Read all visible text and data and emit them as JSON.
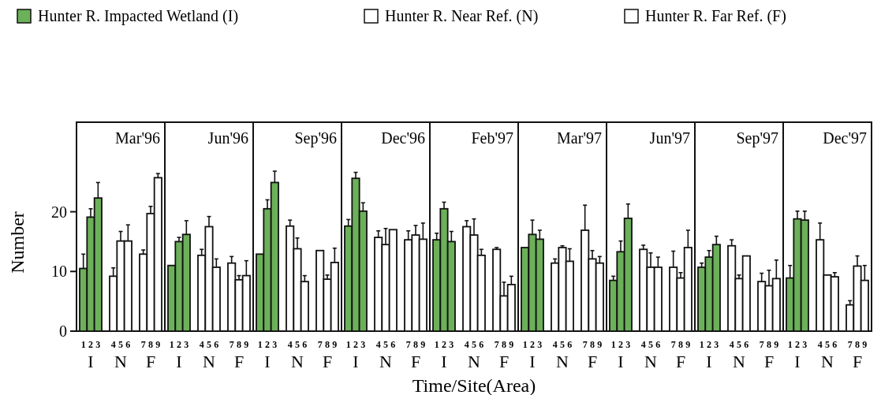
{
  "chart_data": {
    "type": "bar",
    "xlabel": "Time/Site(Area)",
    "ylabel": "Number",
    "categories": [
      "1",
      "2",
      "3",
      "4",
      "5",
      "6",
      "7",
      "8",
      "9",
      "1",
      "2",
      "3",
      "4",
      "5",
      "6",
      "7",
      "8",
      "9",
      "1",
      "2",
      "3",
      "4",
      "5",
      "6",
      "7",
      "8",
      "9",
      "1",
      "2",
      "3",
      "4",
      "5",
      "6",
      "7",
      "8",
      "9",
      "1",
      "2",
      "3",
      "4",
      "5",
      "6",
      "7",
      "8",
      "9",
      "1",
      "2",
      "3",
      "4",
      "5",
      "6",
      "7",
      "8",
      "9",
      "1",
      "2",
      "3",
      "4",
      "5",
      "6",
      "7",
      "8",
      "9",
      "1",
      "2",
      "3",
      "4",
      "5",
      "6",
      "7",
      "8",
      "9",
      "1",
      "2",
      "3",
      "4",
      "5",
      "6",
      "7",
      "8",
      "9"
    ],
    "series": [
      {
        "name": "Hunter R. Impacted Wetland (I)",
        "color": "#6cb05a",
        "values": [
          10.5,
          19.1,
          22.3,
          null,
          null,
          null,
          null,
          null,
          null,
          11.0,
          15.0,
          16.2,
          null,
          null,
          null,
          null,
          null,
          null,
          12.9,
          20.5,
          24.9,
          null,
          null,
          null,
          null,
          null,
          null,
          17.6,
          25.6,
          20.1,
          null,
          null,
          null,
          null,
          null,
          null,
          15.3,
          20.5,
          15.0,
          null,
          null,
          null,
          null,
          null,
          null,
          14.0,
          16.2,
          15.4,
          null,
          null,
          null,
          null,
          null,
          null,
          8.5,
          13.3,
          18.9,
          null,
          null,
          null,
          null,
          null,
          null,
          10.7,
          12.4,
          14.5,
          null,
          null,
          null,
          null,
          null,
          null,
          8.9,
          18.8,
          18.6,
          null,
          null,
          null,
          null,
          null,
          null
        ],
        "errors": [
          2.4,
          1.4,
          2.6,
          null,
          null,
          null,
          null,
          null,
          null,
          null,
          0.7,
          2.3,
          null,
          null,
          null,
          null,
          null,
          null,
          null,
          1.5,
          1.9,
          null,
          null,
          null,
          null,
          null,
          null,
          1.1,
          1.0,
          1.4,
          null,
          null,
          null,
          null,
          null,
          null,
          1.1,
          1.1,
          1.7,
          null,
          null,
          null,
          null,
          null,
          null,
          null,
          2.4,
          1.5,
          null,
          null,
          null,
          null,
          null,
          null,
          0.7,
          1.8,
          2.4,
          null,
          null,
          null,
          null,
          null,
          null,
          0.7,
          1.1,
          1.4,
          null,
          null,
          null,
          null,
          null,
          null,
          2.1,
          1.3,
          1.5,
          null,
          null,
          null,
          null,
          null,
          null
        ]
      },
      {
        "name": "Hunter R. Near Ref. (N)",
        "color": "#ffffff",
        "values": [
          null,
          null,
          null,
          9.2,
          15.1,
          15.1,
          null,
          null,
          null,
          null,
          null,
          null,
          12.7,
          17.5,
          10.7,
          null,
          null,
          null,
          null,
          null,
          null,
          17.6,
          13.8,
          8.3,
          null,
          null,
          null,
          null,
          null,
          null,
          15.7,
          14.5,
          17.0,
          null,
          null,
          null,
          null,
          null,
          null,
          17.5,
          16.1,
          12.7,
          null,
          null,
          null,
          null,
          null,
          null,
          11.4,
          14.0,
          11.7,
          null,
          null,
          null,
          null,
          null,
          null,
          13.7,
          10.7,
          10.7,
          null,
          null,
          null,
          null,
          null,
          null,
          14.3,
          8.8,
          12.6,
          null,
          null,
          null,
          null,
          null,
          null,
          15.3,
          9.4,
          9.1,
          null,
          null,
          null
        ],
        "errors": [
          null,
          null,
          null,
          1.4,
          1.6,
          2.7,
          null,
          null,
          null,
          null,
          null,
          null,
          1.0,
          1.7,
          1.4,
          null,
          null,
          null,
          null,
          null,
          null,
          1.0,
          1.8,
          1.0,
          null,
          null,
          null,
          null,
          null,
          null,
          1.1,
          2.7,
          null,
          null,
          null,
          null,
          null,
          null,
          null,
          1.0,
          2.7,
          1.0,
          null,
          null,
          null,
          null,
          null,
          null,
          0.7,
          0.3,
          2.1,
          null,
          null,
          null,
          null,
          null,
          null,
          0.7,
          2.4,
          1.7,
          null,
          null,
          null,
          null,
          null,
          null,
          1.0,
          0.6,
          null,
          null,
          null,
          null,
          null,
          null,
          null,
          2.8,
          null,
          0.7,
          null,
          null,
          null
        ]
      },
      {
        "name": "Hunter R. Far Ref. (F)",
        "color": "#ffffff",
        "values": [
          null,
          null,
          null,
          null,
          null,
          null,
          12.9,
          19.7,
          25.7,
          null,
          null,
          null,
          null,
          null,
          null,
          11.4,
          8.6,
          9.3,
          null,
          null,
          null,
          null,
          null,
          null,
          13.5,
          8.7,
          11.5,
          null,
          null,
          null,
          null,
          null,
          null,
          15.3,
          16.1,
          15.4,
          null,
          null,
          null,
          null,
          null,
          null,
          13.7,
          5.9,
          7.8,
          null,
          null,
          null,
          null,
          null,
          null,
          16.9,
          12.1,
          11.4,
          null,
          null,
          null,
          null,
          null,
          null,
          10.7,
          8.9,
          14.0,
          null,
          null,
          null,
          null,
          null,
          null,
          8.3,
          7.6,
          8.8,
          null,
          null,
          null,
          null,
          null,
          null,
          4.4,
          10.9,
          8.5
        ],
        "errors": [
          null,
          null,
          null,
          null,
          null,
          null,
          0.7,
          1.2,
          0.7,
          null,
          null,
          null,
          null,
          null,
          null,
          1.1,
          0.7,
          2.5,
          null,
          null,
          null,
          null,
          null,
          null,
          null,
          0.7,
          2.4,
          null,
          null,
          null,
          null,
          null,
          null,
          1.5,
          1.6,
          2.7,
          null,
          null,
          null,
          null,
          null,
          null,
          0.3,
          2.3,
          1.4,
          null,
          null,
          null,
          null,
          null,
          null,
          4.2,
          1.4,
          1.1,
          null,
          null,
          null,
          null,
          null,
          null,
          2.7,
          0.9,
          2.9,
          null,
          null,
          null,
          null,
          null,
          null,
          1.4,
          2.6,
          3.1,
          null,
          null,
          null,
          null,
          null,
          null,
          0.7,
          1.7,
          2.5
        ]
      }
    ],
    "annotations": [
      "Mar'96",
      "Jun'96",
      "Sep'96",
      "Dec'96",
      "Feb'97",
      "Mar'97",
      "Jun'97",
      "Sep'97",
      "Dec'97",
      "I",
      "N",
      "F",
      "I",
      "N",
      "F",
      "I",
      "N",
      "F",
      "I",
      "N",
      "F",
      "I",
      "N",
      "F",
      "I",
      "N",
      "F",
      "I",
      "N",
      "F",
      "I",
      "N",
      "F",
      "I",
      "N",
      "F"
    ],
    "ylim": [
      0,
      35
    ],
    "yticks": [
      0,
      10,
      20
    ],
    "grid": false,
    "legend": "top"
  }
}
